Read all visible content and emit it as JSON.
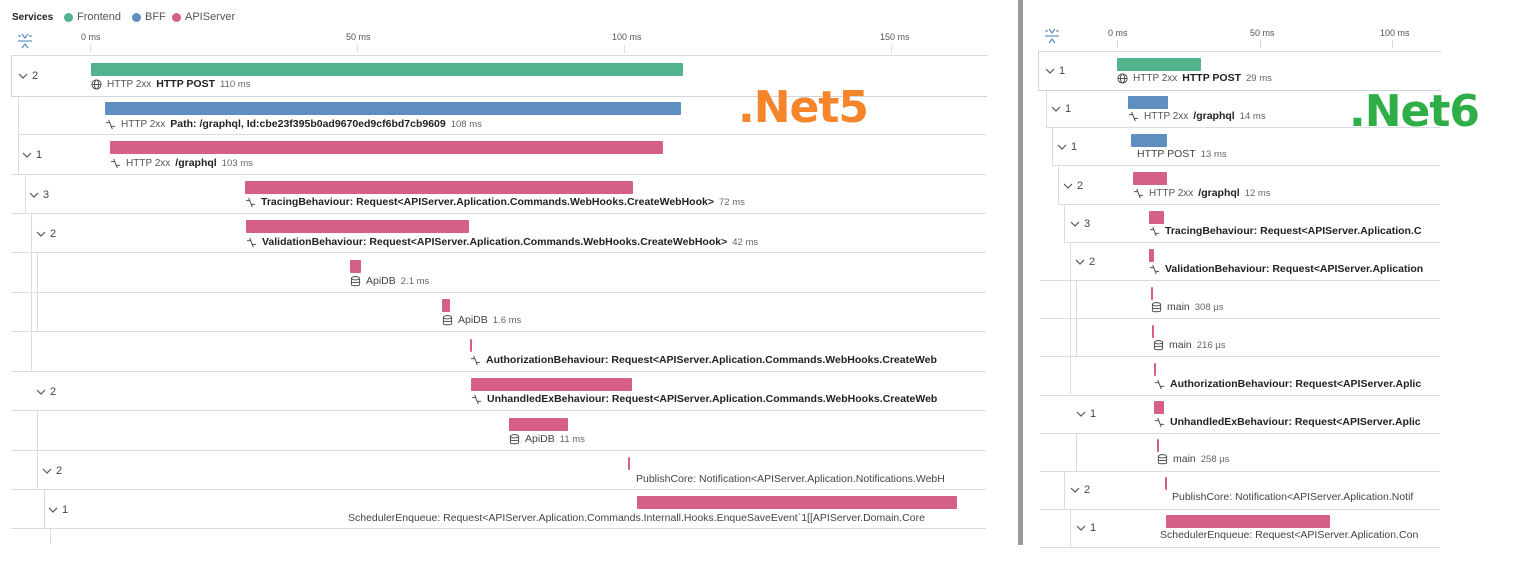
{
  "legend": {
    "title": "Services",
    "items": [
      {
        "label": "Frontend",
        "color": "#52b38f"
      },
      {
        "label": "BFF",
        "color": "#5f8fc0"
      },
      {
        "label": "APIServer",
        "color": "#d55f87"
      }
    ]
  },
  "left": {
    "overlay": {
      "text": ".Net5",
      "color": "#f5852a"
    },
    "ticks": [
      "0 ms",
      "50 ms",
      "100 ms",
      "150 ms"
    ],
    "rows": [
      {
        "toggle": "2",
        "status": "HTTP 2xx",
        "name": "HTTP POST",
        "duration": "110 ms",
        "service": "frontend",
        "icon": "globe-icon"
      },
      {
        "toggle": "",
        "status": "HTTP 2xx",
        "name": "Path: /graphql, Id:cbe23f395b0ad9670ed9cf6bd7cb9609",
        "duration": "108 ms",
        "service": "bff",
        "icon": "span-icon"
      },
      {
        "toggle": "1",
        "status": "HTTP 2xx",
        "name": "/graphql",
        "duration": "103 ms",
        "service": "apiserver",
        "icon": "span-icon"
      },
      {
        "toggle": "3",
        "status": "",
        "name": "TracingBehaviour: Request<APIServer.Aplication.Commands.WebHooks.CreateWebHook>",
        "duration": "72 ms",
        "service": "apiserver",
        "icon": "span-icon"
      },
      {
        "toggle": "2",
        "status": "",
        "name": "ValidationBehaviour: Request<APIServer.Aplication.Commands.WebHooks.CreateWebHook>",
        "duration": "42 ms",
        "service": "apiserver",
        "icon": "span-icon"
      },
      {
        "toggle": "",
        "status": "",
        "name": "ApiDB",
        "duration": "2.1 ms",
        "service": "apiserver",
        "icon": "database-icon"
      },
      {
        "toggle": "",
        "status": "",
        "name": "ApiDB",
        "duration": "1.6 ms",
        "service": "apiserver",
        "icon": "database-icon"
      },
      {
        "toggle": "",
        "status": "",
        "name": "AuthorizationBehaviour: Request<APIServer.Aplication.Commands.WebHooks.CreateWeb",
        "duration": "",
        "service": "apiserver",
        "icon": "span-icon"
      },
      {
        "toggle": "2",
        "status": "",
        "name": "UnhandledExBehaviour: Request<APIServer.Aplication.Commands.WebHooks.CreateWeb",
        "duration": "",
        "service": "apiserver",
        "icon": "span-icon"
      },
      {
        "toggle": "",
        "status": "",
        "name": "ApiDB",
        "duration": "11 ms",
        "service": "apiserver",
        "icon": "database-icon"
      },
      {
        "toggle": "2",
        "status": "",
        "name": "PublishCore: Notification<APIServer.Aplication.Notifications.WebH",
        "duration": "",
        "service": "apiserver",
        "icon": ""
      },
      {
        "toggle": "1",
        "status": "",
        "name": "SchedulerEnqueue: Request<APIServer.Aplication.Commands.Internall.Hooks.EnqueSaveEvent`1[[APIServer.Domain.Core",
        "duration": "",
        "service": "apiserver",
        "icon": ""
      }
    ]
  },
  "right": {
    "overlay": {
      "text": ".Net6",
      "color": "#2fae48"
    },
    "ticks": [
      "0 ms",
      "50 ms",
      "100 ms"
    ],
    "rows": [
      {
        "toggle": "1",
        "status": "HTTP 2xx",
        "name": "HTTP POST",
        "duration": "29 ms",
        "service": "frontend",
        "icon": "globe-icon"
      },
      {
        "toggle": "1",
        "status": "HTTP 2xx",
        "name": "/graphql",
        "duration": "14 ms",
        "service": "bff",
        "icon": "span-icon"
      },
      {
        "toggle": "1",
        "status": "",
        "name": "HTTP POST",
        "duration": "13 ms",
        "service": "bff",
        "icon": ""
      },
      {
        "toggle": "2",
        "status": "HTTP 2xx",
        "name": "/graphql",
        "duration": "12 ms",
        "service": "apiserver",
        "icon": "span-icon"
      },
      {
        "toggle": "3",
        "status": "",
        "name": "TracingBehaviour: Request<APIServer.Aplication.C",
        "duration": "",
        "service": "apiserver",
        "icon": "span-icon"
      },
      {
        "toggle": "2",
        "status": "",
        "name": "ValidationBehaviour: Request<APIServer.Aplication",
        "duration": "",
        "service": "apiserver",
        "icon": "span-icon"
      },
      {
        "toggle": "",
        "status": "",
        "name": "main",
        "duration": "308 µs",
        "service": "apiserver",
        "icon": "database-icon"
      },
      {
        "toggle": "",
        "status": "",
        "name": "main",
        "duration": "216 µs",
        "service": "apiserver",
        "icon": "database-icon"
      },
      {
        "toggle": "",
        "status": "",
        "name": "AuthorizationBehaviour: Request<APIServer.Aplic",
        "duration": "",
        "service": "apiserver",
        "icon": "span-icon"
      },
      {
        "toggle": "1",
        "status": "",
        "name": "UnhandledExBehaviour: Request<APIServer.Aplic",
        "duration": "",
        "service": "apiserver",
        "icon": "span-icon"
      },
      {
        "toggle": "",
        "status": "",
        "name": "main",
        "duration": "258 µs",
        "service": "apiserver",
        "icon": "database-icon"
      },
      {
        "toggle": "2",
        "status": "",
        "name": "PublishCore: Notification<APIServer.Aplication.Notif",
        "duration": "",
        "service": "apiserver",
        "icon": ""
      },
      {
        "toggle": "1",
        "status": "",
        "name": "SchedulerEnqueue: Request<APIServer.Aplication.Con",
        "duration": "",
        "service": "apiserver",
        "icon": ""
      }
    ]
  }
}
